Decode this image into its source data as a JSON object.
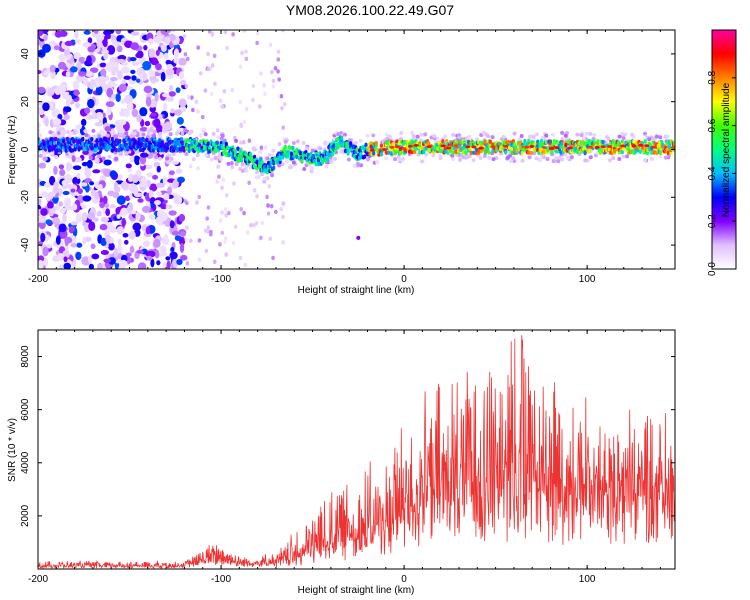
{
  "title": "YM08.2026.100.22.49.G07",
  "chart_data": [
    {
      "type": "heatmap",
      "name": "spectrogram",
      "xlabel": "Height of straight line (km)",
      "ylabel": "Frequency (Hz)",
      "xlim": [
        -200,
        148
      ],
      "ylim": [
        -50,
        50
      ],
      "xticks": [
        -200,
        -100,
        0,
        100
      ],
      "xtick_labels": [
        "-200",
        "-100",
        "0",
        "100"
      ],
      "yticks": [
        -40,
        -20,
        0,
        20,
        40
      ],
      "ytick_labels": [
        "-40",
        "-20",
        "0",
        "20",
        "40"
      ],
      "colorbar": {
        "label": "Normalized spectral amplitude",
        "range": [
          0,
          1
        ],
        "ticks": [
          0.0,
          0.2,
          0.4,
          0.6,
          0.8
        ],
        "tick_labels": [
          "0.0",
          "0.2",
          "0.4",
          "0.6",
          "0.8"
        ],
        "colors": [
          "#ffffff",
          "#e0c0ff",
          "#8000ff",
          "#0000ff",
          "#00c0ff",
          "#00ff80",
          "#40ff00",
          "#ffff00",
          "#ff8000",
          "#ff0000",
          "#ff00a0"
        ]
      },
      "features": {
        "noise_region_x": [
          -200,
          -120
        ],
        "sparse_region_x": [
          -120,
          -65
        ],
        "band_center_hz": [
          {
            "x": -200,
            "y": 2
          },
          {
            "x": -120,
            "y": 2
          },
          {
            "x": -100,
            "y": 1
          },
          {
            "x": -85,
            "y": -4
          },
          {
            "x": -75,
            "y": -8
          },
          {
            "x": -65,
            "y": -1
          },
          {
            "x": -55,
            "y": -3
          },
          {
            "x": -45,
            "y": -4
          },
          {
            "x": -35,
            "y": 3
          },
          {
            "x": -25,
            "y": -2
          },
          {
            "x": -20,
            "y": 0
          },
          {
            "x": 0,
            "y": 1
          },
          {
            "x": 148,
            "y": 1
          }
        ]
      }
    },
    {
      "type": "line",
      "name": "snr",
      "xlabel": "Height of straight line (km)",
      "ylabel": "SNR (10 * v/v)",
      "xlim": [
        -200,
        148
      ],
      "ylim": [
        0,
        9000
      ],
      "xticks": [
        -200,
        -100,
        0,
        100
      ],
      "xtick_labels": [
        "-200",
        "-100",
        "0",
        "100"
      ],
      "yticks": [
        2000,
        4000,
        6000,
        8000
      ],
      "ytick_labels": [
        "2000",
        "4000",
        "6000",
        "8000"
      ],
      "color": "#ee3333",
      "envelope": [
        {
          "x": -200,
          "base": 100,
          "amp": 200
        },
        {
          "x": -120,
          "base": 100,
          "amp": 200
        },
        {
          "x": -110,
          "base": 300,
          "amp": 500
        },
        {
          "x": -100,
          "base": 350,
          "amp": 900
        },
        {
          "x": -90,
          "base": 200,
          "amp": 300
        },
        {
          "x": -70,
          "base": 200,
          "amp": 400
        },
        {
          "x": -55,
          "base": 400,
          "amp": 1400
        },
        {
          "x": -40,
          "base": 900,
          "amp": 2200
        },
        {
          "x": -25,
          "base": 1100,
          "amp": 2600
        },
        {
          "x": -10,
          "base": 1500,
          "amp": 2500
        },
        {
          "x": 0,
          "base": 2300,
          "amp": 3300
        },
        {
          "x": 20,
          "base": 2800,
          "amp": 4200
        },
        {
          "x": 40,
          "base": 3000,
          "amp": 5200
        },
        {
          "x": 60,
          "base": 3200,
          "amp": 5600
        },
        {
          "x": 80,
          "base": 3000,
          "amp": 4800
        },
        {
          "x": 100,
          "base": 2800,
          "amp": 3500
        },
        {
          "x": 120,
          "base": 2800,
          "amp": 3200
        },
        {
          "x": 148,
          "base": 2800,
          "amp": 3100
        }
      ]
    }
  ]
}
